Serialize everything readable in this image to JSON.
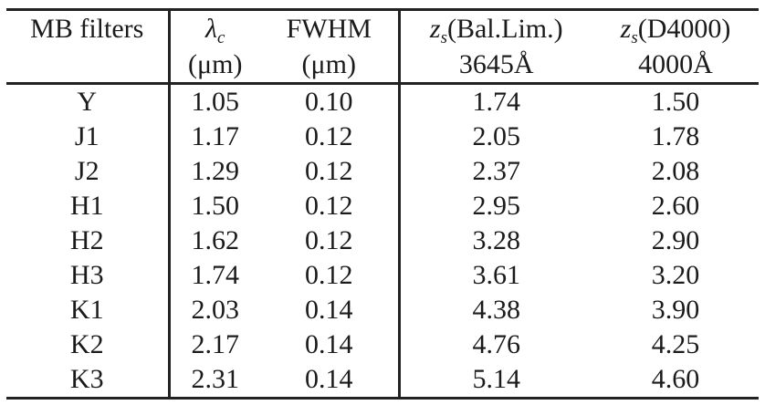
{
  "colors": {
    "background": "#ffffff",
    "text": "#1b1b1b",
    "rule": "#222222"
  },
  "table": {
    "header": {
      "filters": {
        "line1": "MB filters",
        "line2": ""
      },
      "lambda_c": {
        "symbol": "λ",
        "sub": "c",
        "rest": "",
        "line2": "(μm)"
      },
      "fwhm": {
        "line1": "FWHM",
        "line2": "(μm)"
      },
      "zs_balmer": {
        "symbol": "z",
        "sub": "s",
        "rest": "(Bal.Lim.)",
        "line2": "3645Å"
      },
      "zs_d4000": {
        "symbol": "z",
        "sub": "s",
        "rest": "(D4000)",
        "line2": "4000Å"
      }
    },
    "rows": [
      {
        "filter": "Y",
        "lambda_c": "1.05",
        "fwhm": "0.10",
        "zs_balmer": "1.74",
        "zs_d4000": "1.50"
      },
      {
        "filter": "J1",
        "lambda_c": "1.17",
        "fwhm": "0.12",
        "zs_balmer": "2.05",
        "zs_d4000": "1.78"
      },
      {
        "filter": "J2",
        "lambda_c": "1.29",
        "fwhm": "0.12",
        "zs_balmer": "2.37",
        "zs_d4000": "2.08"
      },
      {
        "filter": "H1",
        "lambda_c": "1.50",
        "fwhm": "0.12",
        "zs_balmer": "2.95",
        "zs_d4000": "2.60"
      },
      {
        "filter": "H2",
        "lambda_c": "1.62",
        "fwhm": "0.12",
        "zs_balmer": "3.28",
        "zs_d4000": "2.90"
      },
      {
        "filter": "H3",
        "lambda_c": "1.74",
        "fwhm": "0.12",
        "zs_balmer": "3.61",
        "zs_d4000": "3.20"
      },
      {
        "filter": "K1",
        "lambda_c": "2.03",
        "fwhm": "0.14",
        "zs_balmer": "4.38",
        "zs_d4000": "3.90"
      },
      {
        "filter": "K2",
        "lambda_c": "2.17",
        "fwhm": "0.14",
        "zs_balmer": "4.76",
        "zs_d4000": "4.25"
      },
      {
        "filter": "K3",
        "lambda_c": "2.31",
        "fwhm": "0.14",
        "zs_balmer": "5.14",
        "zs_d4000": "4.60"
      }
    ]
  }
}
